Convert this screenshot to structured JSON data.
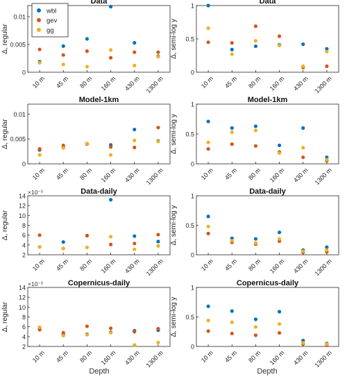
{
  "figure": {
    "xlabel_left": "Depth",
    "xlabel_right": "Depth"
  },
  "legend": {
    "location": "top-left of first panel",
    "items": [
      {
        "label": "wbl",
        "color": "#0072BD"
      },
      {
        "label": "gev",
        "color": "#D95319"
      },
      {
        "label": "gg",
        "color": "#EDB120"
      }
    ]
  },
  "chart_data": [
    {
      "type": "scatter",
      "title": "Data",
      "ylabel": "Δ, regular",
      "categories": [
        "10 m",
        "45 m",
        "80 m",
        "160 m",
        "430 m",
        "1300 m"
      ],
      "ylim": [
        0,
        0.012
      ],
      "yticks": [
        0,
        0.005,
        0.01
      ],
      "yticklabels": [
        "0",
        "0.005",
        "0.01"
      ],
      "series": [
        {
          "name": "wbl",
          "values": [
            0.0019,
            0.0047,
            0.006,
            0.0118,
            0.0053,
            0.0029
          ]
        },
        {
          "name": "gev",
          "values": [
            0.0041,
            0.0031,
            0.0038,
            0.0026,
            0.0036,
            0.0036
          ]
        },
        {
          "name": "gg",
          "values": [
            0.0017,
            0.0014,
            0.001,
            0.004,
            0.0012,
            0.0028
          ]
        }
      ]
    },
    {
      "type": "scatter",
      "title": "Data",
      "ylabel": "Δ, semi-log y",
      "categories": [
        "10 m",
        "45 m",
        "80 m",
        "160 m",
        "430 m",
        "1300 m"
      ],
      "ylim": [
        0,
        1
      ],
      "yticks": [
        0,
        0.5,
        1
      ],
      "yticklabels": [
        "0",
        "0.5",
        "1"
      ],
      "series": [
        {
          "name": "wbl",
          "values": [
            1.0,
            0.34,
            0.39,
            0.41,
            0.42,
            0.35
          ]
        },
        {
          "name": "gev",
          "values": [
            0.45,
            0.44,
            0.69,
            0.54,
            0.07,
            0.09
          ]
        },
        {
          "name": "gg",
          "values": [
            0.66,
            0.27,
            0.47,
            0.4,
            0.09,
            0.31
          ]
        }
      ]
    },
    {
      "type": "scatter",
      "title": "Model-1km",
      "ylabel": "Δ, regular",
      "categories": [
        "10 m",
        "45 m",
        "80 m",
        "160 m",
        "430 m",
        "1300 m"
      ],
      "ylim": [
        0,
        0.012
      ],
      "yticks": [
        0,
        0.005,
        0.01
      ],
      "yticklabels": [
        "0",
        "0.005",
        "0.01"
      ],
      "series": [
        {
          "name": "wbl",
          "values": [
            0.0028,
            0.0034,
            0.004,
            0.0038,
            0.0069,
            0.0046
          ]
        },
        {
          "name": "gev",
          "values": [
            0.003,
            0.0037,
            0.004,
            0.0034,
            0.0033,
            0.0073
          ]
        },
        {
          "name": "gg",
          "values": [
            0.0018,
            0.0032,
            0.0041,
            0.0018,
            0.0047,
            0.0045
          ]
        }
      ]
    },
    {
      "type": "scatter",
      "title": "Model-1km",
      "ylabel": "Δ, semi-log y",
      "categories": [
        "10 m",
        "45 m",
        "80 m",
        "160 m",
        "430 m",
        "1300 m"
      ],
      "ylim": [
        0,
        1
      ],
      "yticks": [
        0,
        0.5,
        1
      ],
      "yticklabels": [
        "0",
        "0.5",
        "1"
      ],
      "series": [
        {
          "name": "wbl",
          "values": [
            0.71,
            0.6,
            0.63,
            0.31,
            0.6,
            0.11
          ]
        },
        {
          "name": "gev",
          "values": [
            0.25,
            0.33,
            0.3,
            0.2,
            0.11,
            0.05
          ]
        },
        {
          "name": "gg",
          "values": [
            0.36,
            0.53,
            0.56,
            0.18,
            0.27,
            0.07
          ]
        }
      ]
    },
    {
      "type": "scatter",
      "title": "Data-daily",
      "ylabel": "Δ, regular",
      "exponent_label": "×10⁻³",
      "categories": [
        "10 m",
        "45 m",
        "80 m",
        "160 m",
        "430 m",
        "1300 m"
      ],
      "ylim": [
        2,
        14
      ],
      "yticks": [
        2,
        4,
        6,
        8,
        10,
        12,
        14
      ],
      "yticklabels": [
        "2",
        "4",
        "6",
        "8",
        "10",
        "12",
        "14"
      ],
      "series": [
        {
          "name": "wbl",
          "values": [
            3.6,
            4.6,
            5.9,
            13.2,
            5.8,
            4.7
          ]
        },
        {
          "name": "gev",
          "values": [
            6.0,
            3.3,
            5.9,
            4.1,
            4.3,
            6.1
          ]
        },
        {
          "name": "gg",
          "values": [
            3.6,
            3.3,
            3.5,
            5.7,
            3.1,
            3.8
          ]
        }
      ]
    },
    {
      "type": "scatter",
      "title": "Data-daily",
      "ylabel": "Δ, semi-log y",
      "categories": [
        "10 m",
        "45 m",
        "80 m",
        "160 m",
        "430 m",
        "1300 m"
      ],
      "ylim": [
        0,
        1
      ],
      "yticks": [
        0,
        0.5,
        1
      ],
      "yticklabels": [
        "0",
        "0.5",
        "1"
      ],
      "series": [
        {
          "name": "wbl",
          "values": [
            0.65,
            0.28,
            0.27,
            0.38,
            0.08,
            0.13
          ]
        },
        {
          "name": "gev",
          "values": [
            0.36,
            0.21,
            0.18,
            0.23,
            0.04,
            0.05
          ]
        },
        {
          "name": "gg",
          "values": [
            0.48,
            0.24,
            0.2,
            0.27,
            0.06,
            0.08
          ]
        }
      ]
    },
    {
      "type": "scatter",
      "title": "Copernicus-daily",
      "ylabel": "Δ, regular",
      "exponent_label": "×10⁻³",
      "categories": [
        "10 m",
        "45 m",
        "80 m",
        "160 m",
        "430 m",
        "1300 m"
      ],
      "ylim": [
        2,
        14
      ],
      "yticks": [
        2,
        4,
        6,
        8,
        10,
        12,
        14
      ],
      "yticklabels": [
        "2",
        "4",
        "6",
        "8",
        "10",
        "12",
        "14"
      ],
      "series": [
        {
          "name": "wbl",
          "values": [
            5.7,
            4.4,
            4.5,
            4.9,
            5.2,
            5.3
          ]
        },
        {
          "name": "gev",
          "values": [
            5.4,
            4.8,
            6.1,
            5.7,
            5.0,
            5.6
          ]
        },
        {
          "name": "gg",
          "values": [
            5.9,
            4.2,
            4.4,
            4.8,
            2.3,
            2.8
          ]
        }
      ]
    },
    {
      "type": "scatter",
      "title": "Copernicus-daily",
      "ylabel": "Δ, semi-log y",
      "categories": [
        "10 m",
        "45 m",
        "80 m",
        "160 m",
        "430 m",
        "1300 m"
      ],
      "ylim": [
        0,
        1
      ],
      "yticks": [
        0,
        0.5,
        1
      ],
      "yticklabels": [
        "0",
        "0.5",
        "1"
      ],
      "series": [
        {
          "name": "wbl",
          "values": [
            0.68,
            0.6,
            0.46,
            0.59,
            0.1,
            0.05
          ]
        },
        {
          "name": "gev",
          "values": [
            0.26,
            0.22,
            0.19,
            0.23,
            0.04,
            0.02
          ]
        },
        {
          "name": "gg",
          "values": [
            0.44,
            0.41,
            0.33,
            0.38,
            0.06,
            0.04
          ]
        }
      ]
    }
  ]
}
